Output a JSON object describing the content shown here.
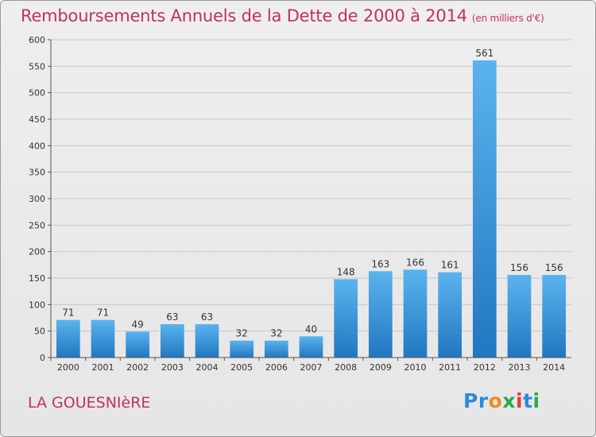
{
  "header": {
    "title": "Remboursements Annuels de la Dette de 2000 à 2014",
    "unit": "(en milliers d'€)"
  },
  "footer": {
    "commune": "LA GOUESNIèRE",
    "logo_text": "Proxiti"
  },
  "colors": {
    "title": "#c0306a",
    "bar_light": "#5bb3ee",
    "bar_dark": "#2177c0",
    "grid": "#c8c8c8"
  },
  "chart_data": {
    "type": "bar",
    "title": "Remboursements Annuels de la Dette de 2000 à 2014",
    "ylabel": "",
    "xlabel": "",
    "ylim": [
      0,
      600
    ],
    "yticks": [
      0,
      50,
      100,
      150,
      200,
      250,
      300,
      350,
      400,
      450,
      500,
      550,
      600
    ],
    "grid": true,
    "categories": [
      "2000",
      "2001",
      "2002",
      "2003",
      "2004",
      "2005",
      "2006",
      "2007",
      "2008",
      "2009",
      "2010",
      "2011",
      "2012",
      "2013",
      "2014"
    ],
    "values": [
      71,
      71,
      49,
      63,
      63,
      32,
      32,
      40,
      148,
      163,
      166,
      161,
      561,
      156,
      156
    ]
  }
}
